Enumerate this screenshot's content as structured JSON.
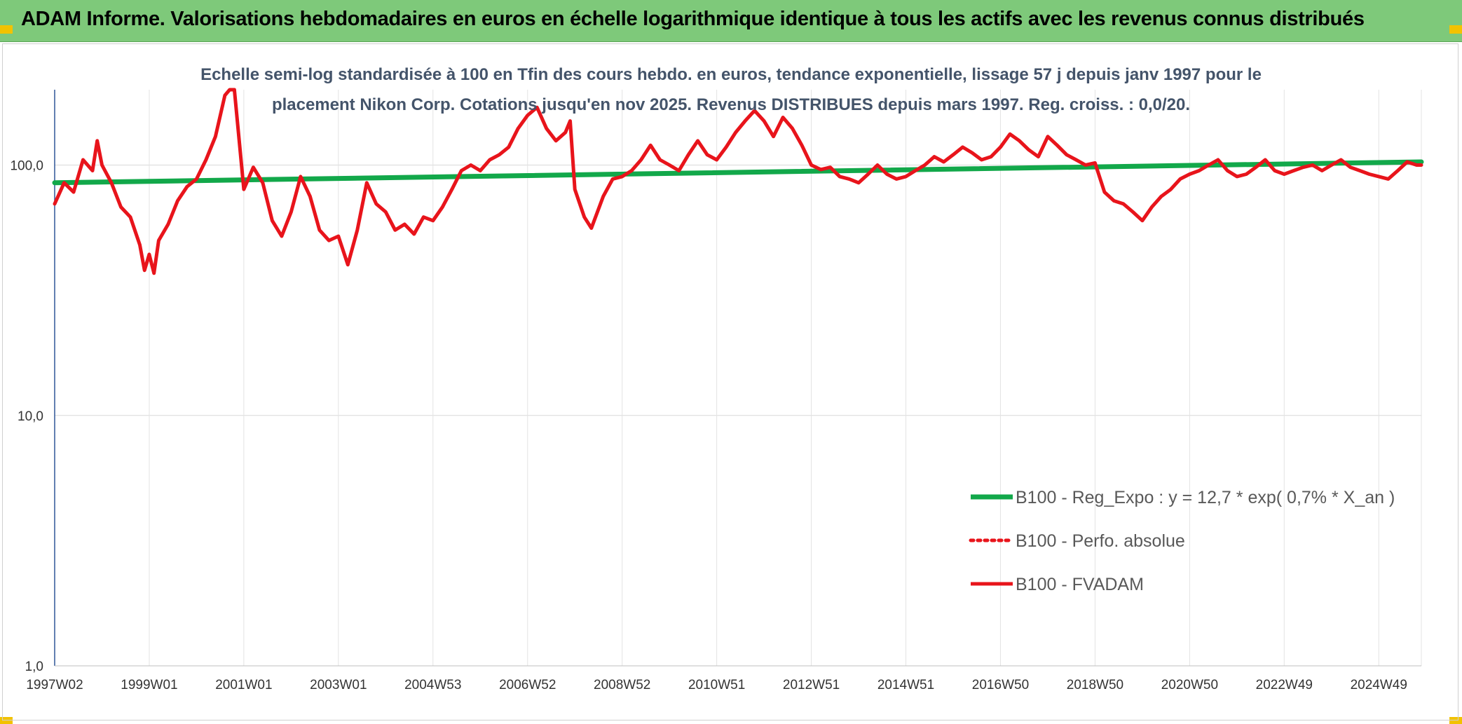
{
  "header": {
    "title": "ADAM Informe. Valorisations hebdomadaires en euros en échelle logarithmique identique à tous les actifs avec les revenus connus distribués"
  },
  "colors": {
    "banner": "#7ec97a",
    "trend": "#12a84a",
    "fvadam": "#e8141b",
    "title_text": "#44546a",
    "corner_accent": "#f2c200"
  },
  "chart_data": {
    "type": "line",
    "title_lines": [
      "Echelle semi-log standardisée à 100 en Tfin des cours hebdo. en euros, tendance exponentielle, lissage 57 j depuis janv 1997 pour le",
      "placement Nikon Corp. Cotations jusqu'en nov 2025. Revenus DISTRIBUES depuis mars 1997. Reg. croiss. : 0,0/20."
    ],
    "y_scale": "log",
    "ylim": [
      1,
      200
    ],
    "y_ticks": [
      {
        "value": 1,
        "label": "1,0"
      },
      {
        "value": 10,
        "label": "10,0"
      },
      {
        "value": 100,
        "label": "100,0"
      }
    ],
    "xlim": [
      1997.0,
      2025.9
    ],
    "x_ticks": [
      {
        "value": 1997.0,
        "label": "1997W02"
      },
      {
        "value": 1999.0,
        "label": "1999W01"
      },
      {
        "value": 2001.0,
        "label": "2001W01"
      },
      {
        "value": 2003.0,
        "label": "2003W01"
      },
      {
        "value": 2005.0,
        "label": "2004W53"
      },
      {
        "value": 2007.0,
        "label": "2006W52"
      },
      {
        "value": 2009.0,
        "label": "2008W52"
      },
      {
        "value": 2011.0,
        "label": "2010W51"
      },
      {
        "value": 2013.0,
        "label": "2012W51"
      },
      {
        "value": 2015.0,
        "label": "2014W51"
      },
      {
        "value": 2017.0,
        "label": "2016W50"
      },
      {
        "value": 2019.0,
        "label": "2018W50"
      },
      {
        "value": 2021.0,
        "label": "2020W50"
      },
      {
        "value": 2023.0,
        "label": "2022W49"
      },
      {
        "value": 2025.0,
        "label": "2024W49"
      }
    ],
    "grid": true,
    "legend_position": "right",
    "series": [
      {
        "name": "B100 - Reg_Expo : y = 12,7 * exp( 0,7% *  X_an )",
        "style": "solid",
        "color": "#12a84a",
        "points": [
          [
            1997.0,
            85
          ],
          [
            2025.9,
            103
          ]
        ]
      },
      {
        "name": "B100 - Perfo. absolue",
        "style": "dotted",
        "color": "#e8141b",
        "points": []
      },
      {
        "name": "B100 - FVADAM",
        "style": "solid",
        "color": "#e8141b",
        "points": [
          [
            1997.0,
            70
          ],
          [
            1997.2,
            85
          ],
          [
            1997.4,
            78
          ],
          [
            1997.6,
            105
          ],
          [
            1997.8,
            95
          ],
          [
            1997.9,
            125
          ],
          [
            1998.0,
            100
          ],
          [
            1998.2,
            85
          ],
          [
            1998.4,
            68
          ],
          [
            1998.6,
            62
          ],
          [
            1998.8,
            48
          ],
          [
            1998.9,
            38
          ],
          [
            1999.0,
            44
          ],
          [
            1999.1,
            37
          ],
          [
            1999.2,
            50
          ],
          [
            1999.4,
            58
          ],
          [
            1999.6,
            72
          ],
          [
            1999.8,
            82
          ],
          [
            2000.0,
            88
          ],
          [
            2000.2,
            105
          ],
          [
            2000.4,
            130
          ],
          [
            2000.6,
            190
          ],
          [
            2000.7,
            200
          ],
          [
            2000.8,
            200
          ],
          [
            2001.0,
            80
          ],
          [
            2001.2,
            98
          ],
          [
            2001.4,
            85
          ],
          [
            2001.6,
            60
          ],
          [
            2001.8,
            52
          ],
          [
            2002.0,
            65
          ],
          [
            2002.2,
            90
          ],
          [
            2002.4,
            75
          ],
          [
            2002.6,
            55
          ],
          [
            2002.8,
            50
          ],
          [
            2003.0,
            52
          ],
          [
            2003.2,
            40
          ],
          [
            2003.4,
            55
          ],
          [
            2003.6,
            85
          ],
          [
            2003.8,
            70
          ],
          [
            2004.0,
            65
          ],
          [
            2004.2,
            55
          ],
          [
            2004.4,
            58
          ],
          [
            2004.6,
            53
          ],
          [
            2004.8,
            62
          ],
          [
            2005.0,
            60
          ],
          [
            2005.2,
            68
          ],
          [
            2005.4,
            80
          ],
          [
            2005.6,
            95
          ],
          [
            2005.8,
            100
          ],
          [
            2006.0,
            95
          ],
          [
            2006.2,
            105
          ],
          [
            2006.4,
            110
          ],
          [
            2006.6,
            118
          ],
          [
            2006.8,
            140
          ],
          [
            2007.0,
            158
          ],
          [
            2007.2,
            170
          ],
          [
            2007.4,
            140
          ],
          [
            2007.6,
            125
          ],
          [
            2007.8,
            135
          ],
          [
            2007.9,
            150
          ],
          [
            2008.0,
            80
          ],
          [
            2008.2,
            62
          ],
          [
            2008.35,
            56
          ],
          [
            2008.6,
            75
          ],
          [
            2008.8,
            88
          ],
          [
            2009.0,
            90
          ],
          [
            2009.2,
            95
          ],
          [
            2009.4,
            105
          ],
          [
            2009.6,
            120
          ],
          [
            2009.8,
            105
          ],
          [
            2010.0,
            100
          ],
          [
            2010.2,
            95
          ],
          [
            2010.4,
            110
          ],
          [
            2010.6,
            125
          ],
          [
            2010.8,
            110
          ],
          [
            2011.0,
            105
          ],
          [
            2011.2,
            118
          ],
          [
            2011.4,
            135
          ],
          [
            2011.6,
            150
          ],
          [
            2011.8,
            165
          ],
          [
            2012.0,
            150
          ],
          [
            2012.2,
            130
          ],
          [
            2012.4,
            155
          ],
          [
            2012.6,
            140
          ],
          [
            2012.8,
            120
          ],
          [
            2013.0,
            100
          ],
          [
            2013.2,
            96
          ],
          [
            2013.4,
            98
          ],
          [
            2013.6,
            90
          ],
          [
            2013.8,
            88
          ],
          [
            2014.0,
            85
          ],
          [
            2014.2,
            92
          ],
          [
            2014.4,
            100
          ],
          [
            2014.6,
            92
          ],
          [
            2014.8,
            88
          ],
          [
            2015.0,
            90
          ],
          [
            2015.2,
            95
          ],
          [
            2015.4,
            100
          ],
          [
            2015.6,
            108
          ],
          [
            2015.8,
            103
          ],
          [
            2016.0,
            110
          ],
          [
            2016.2,
            118
          ],
          [
            2016.4,
            112
          ],
          [
            2016.6,
            105
          ],
          [
            2016.8,
            108
          ],
          [
            2017.0,
            118
          ],
          [
            2017.2,
            133
          ],
          [
            2017.4,
            125
          ],
          [
            2017.6,
            115
          ],
          [
            2017.8,
            108
          ],
          [
            2018.0,
            130
          ],
          [
            2018.2,
            120
          ],
          [
            2018.4,
            110
          ],
          [
            2018.6,
            105
          ],
          [
            2018.8,
            100
          ],
          [
            2019.0,
            102
          ],
          [
            2019.2,
            78
          ],
          [
            2019.4,
            72
          ],
          [
            2019.6,
            70
          ],
          [
            2019.8,
            65
          ],
          [
            2020.0,
            60
          ],
          [
            2020.2,
            68
          ],
          [
            2020.4,
            75
          ],
          [
            2020.6,
            80
          ],
          [
            2020.8,
            88
          ],
          [
            2021.0,
            92
          ],
          [
            2021.2,
            95
          ],
          [
            2021.4,
            100
          ],
          [
            2021.6,
            105
          ],
          [
            2021.8,
            95
          ],
          [
            2022.0,
            90
          ],
          [
            2022.2,
            92
          ],
          [
            2022.4,
            98
          ],
          [
            2022.6,
            105
          ],
          [
            2022.8,
            95
          ],
          [
            2023.0,
            92
          ],
          [
            2023.2,
            95
          ],
          [
            2023.4,
            98
          ],
          [
            2023.6,
            100
          ],
          [
            2023.8,
            95
          ],
          [
            2024.0,
            100
          ],
          [
            2024.2,
            105
          ],
          [
            2024.4,
            98
          ],
          [
            2024.6,
            95
          ],
          [
            2024.8,
            92
          ],
          [
            2025.0,
            90
          ],
          [
            2025.2,
            88
          ],
          [
            2025.4,
            95
          ],
          [
            2025.6,
            103
          ],
          [
            2025.8,
            100
          ],
          [
            2025.9,
            100
          ]
        ]
      }
    ]
  }
}
